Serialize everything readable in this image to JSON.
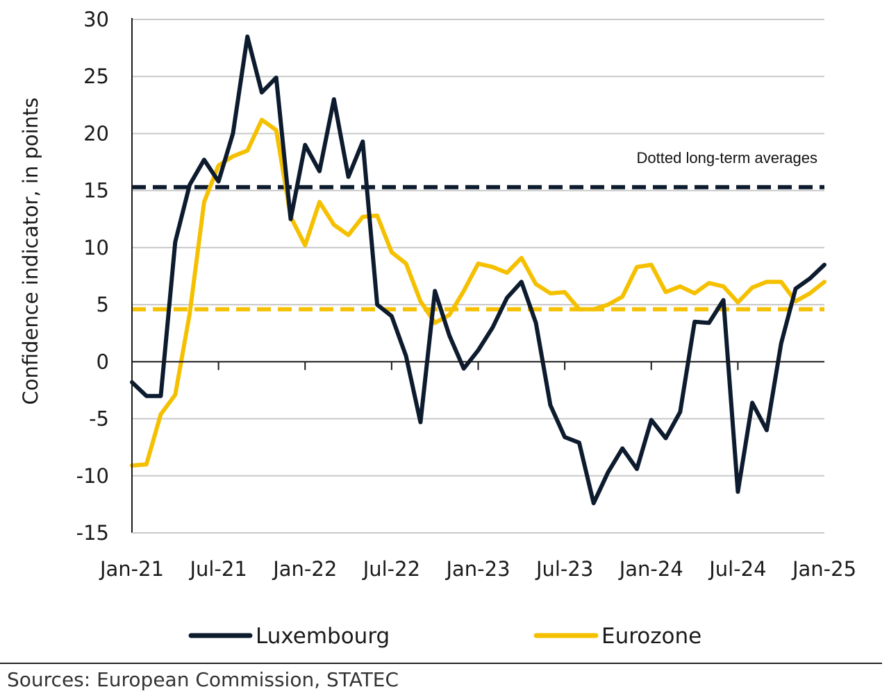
{
  "chart_data": {
    "type": "line",
    "ylabel": "Confidence indicator, in points",
    "xlabel": "",
    "ylim": [
      -15,
      30
    ],
    "yticks": [
      30,
      25,
      20,
      15,
      10,
      5,
      0,
      -5,
      -10,
      -15
    ],
    "x_tick_labels": [
      "Jan-21",
      "Jul-21",
      "Jan-22",
      "Jul-22",
      "Jan-23",
      "Jul-23",
      "Jan-24",
      "Jul-24",
      "Jan-25"
    ],
    "x_start": "Jan-21",
    "x_end": "Jan-25",
    "grid": "horizontal",
    "legend_position": "bottom",
    "annotation": "Dotted long-term averages",
    "series": [
      {
        "name": "Luxembourg",
        "color": "#0d1b2e",
        "values": [
          -1.8,
          -3,
          -3,
          10.5,
          15.5,
          17.7,
          15.8,
          20,
          28.5,
          23.6,
          24.9,
          12.5,
          19,
          16.7,
          23,
          16.2,
          19.3,
          5,
          4,
          0.5,
          -5.3,
          6.2,
          2.3,
          -0.6,
          1,
          3,
          5.6,
          7,
          3.4,
          -3.8,
          -6.6,
          -7.1,
          -12.4,
          -9.7,
          -7.6,
          -9.4,
          -5.1,
          -6.7,
          -4.4,
          3.5,
          3.4,
          5.4,
          -11.4,
          -3.6,
          -6,
          1.6,
          6.4,
          7.3,
          8.5
        ]
      },
      {
        "name": "Eurozone",
        "color": "#f5c000",
        "values": [
          -9.1,
          -9,
          -4.6,
          -2.9,
          4.2,
          14,
          17.2,
          18,
          18.5,
          21.2,
          20.3,
          12.7,
          10.2,
          14,
          12,
          11.1,
          12.7,
          12.8,
          9.6,
          8.6,
          5.3,
          3.4,
          4.1,
          6.2,
          8.6,
          8.3,
          7.8,
          9.1,
          6.8,
          6,
          6.1,
          4.6,
          4.6,
          5,
          5.7,
          8.3,
          8.5,
          6.1,
          6.6,
          6,
          6.9,
          6.6,
          5.2,
          6.5,
          7,
          7,
          5.3,
          6,
          7
        ]
      }
    ],
    "reference_lines": [
      {
        "label": "Luxembourg long-term average",
        "value": 15.3,
        "color": "#0d1b2e",
        "style": "dashed"
      },
      {
        "label": "Eurozone long-term average",
        "value": 4.6,
        "color": "#f5c000",
        "style": "dashed"
      }
    ]
  },
  "source": "Sources: European Commission, STATEC"
}
